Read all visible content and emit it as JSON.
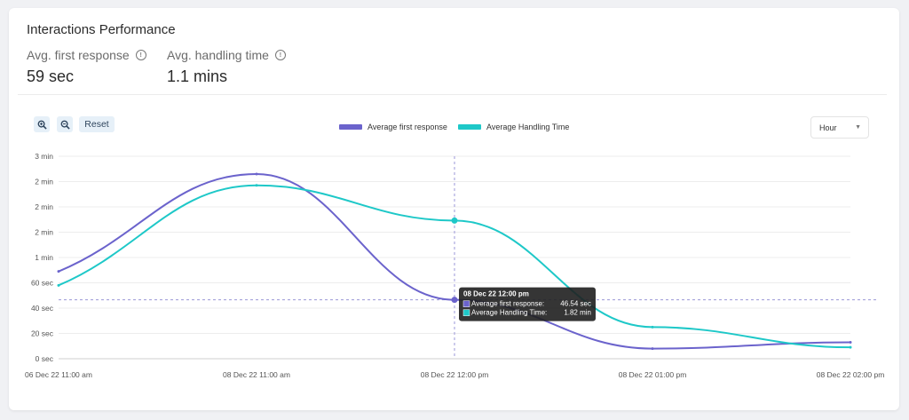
{
  "card": {
    "title": "Interactions Performance"
  },
  "metrics": [
    {
      "label": "Avg. first response",
      "value": "59 sec",
      "icon": "info-icon"
    },
    {
      "label": "Avg. handling time",
      "value": "1.1 mins",
      "icon": "info-icon"
    }
  ],
  "toolbar": {
    "zoom_in_icon": "zoom-in-icon",
    "zoom_out_icon": "zoom-out-icon",
    "reset_label": "Reset"
  },
  "interval_select": {
    "value": "Hour"
  },
  "chart_data": {
    "type": "line",
    "x_tick_labels": [
      "06 Dec 22 11:00 am",
      "08 Dec 22 11:00 am",
      "08 Dec 22 12:00 pm",
      "08 Dec 22 01:00 pm",
      "08 Dec 22 02:00 pm"
    ],
    "y_tick_labels": [
      "0 sec",
      "20 sec",
      "40 sec",
      "60 sec",
      "1 min",
      "2 min",
      "2 min",
      "2 min",
      "3 min"
    ],
    "y_tick_values_sec": [
      0,
      20,
      40,
      60,
      80,
      100,
      120,
      140,
      160
    ],
    "ylim_sec": [
      0,
      160
    ],
    "grid": true,
    "legend_position": "top-center",
    "series": [
      {
        "name": "Average first response",
        "color": "#6b63cc",
        "values_sec": [
          69,
          146,
          46.54,
          8,
          13
        ]
      },
      {
        "name": "Average Handling Time",
        "color": "#1ec8c8",
        "values_sec": [
          58,
          137,
          109.2,
          25,
          9
        ]
      }
    ],
    "tooltip": {
      "title": "08 Dec 22 12:00 pm",
      "rows": [
        {
          "label": "Average first response:",
          "value": "46.54 sec",
          "color": "#6b63cc"
        },
        {
          "label": "Average Handling Time:",
          "value": "1.82 min",
          "color": "#1ec8c8"
        }
      ]
    }
  }
}
